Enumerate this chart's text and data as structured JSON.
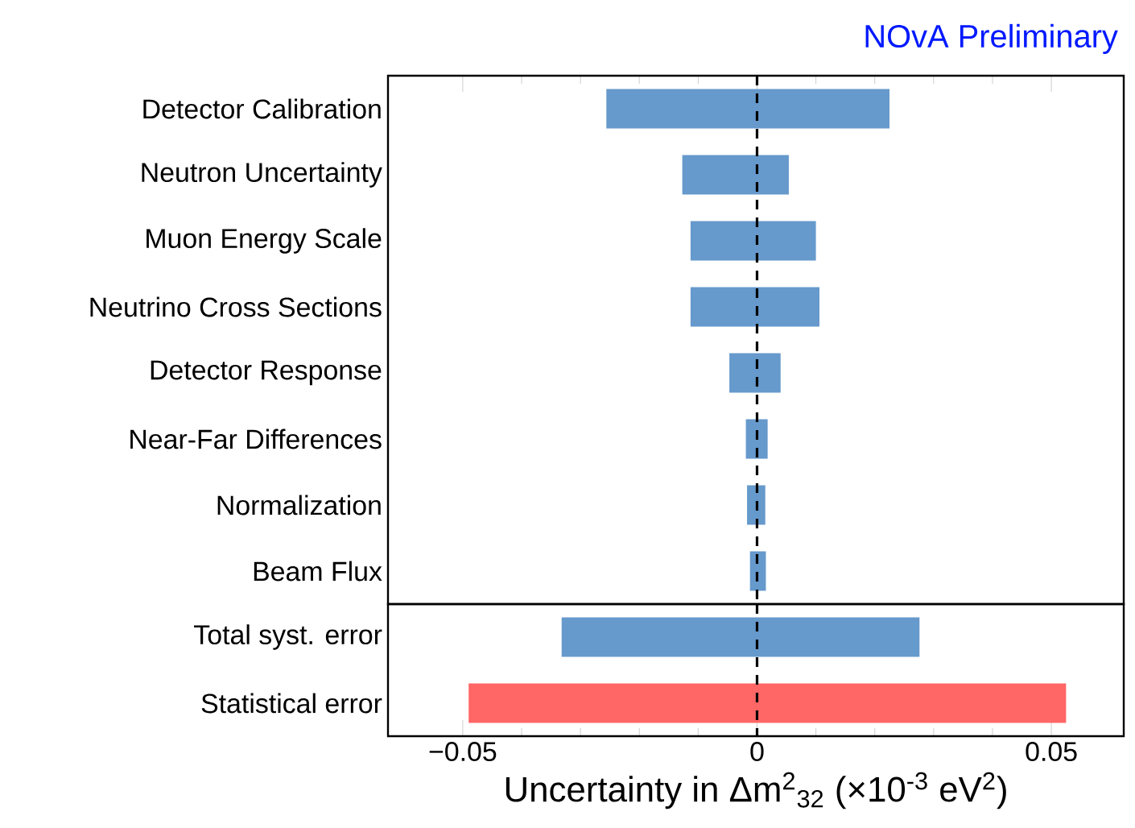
{
  "chart_data": [
    {
      "type": "bar",
      "orientation": "horizontal",
      "title": "NOvA Preliminary",
      "categories": [
        "Detector Calibration",
        "Neutron Uncertainty",
        "Muon Energy Scale",
        "Neutrino Cross Sections",
        "Detector Response",
        "Near-Far Differences",
        "Normalization",
        "Beam Flux"
      ],
      "base": [
        -0.0256,
        -0.0127,
        -0.0113,
        -0.0113,
        -0.0047,
        -0.0019,
        -0.0017,
        -0.0012
      ],
      "values": [
        0.0481,
        0.0181,
        0.0213,
        0.0219,
        0.0087,
        0.0037,
        0.0031,
        0.0027
      ],
      "colors": [
        "#6699cc",
        "#6699cc",
        "#6699cc",
        "#6699cc",
        "#6699cc",
        "#6699cc",
        "#6699cc",
        "#6699cc"
      ],
      "xlim": [
        -0.0627,
        0.0623
      ],
      "xticks": [
        {
          "value": -0.05,
          "label": null
        },
        {
          "value": 0,
          "label": null
        },
        {
          "value": 0.05,
          "label": null
        }
      ],
      "tick_labels": "y",
      "ref_lines": [
        {
          "axis": "x",
          "value": 0,
          "color": "#000000",
          "line_style": "dashed"
        }
      ]
    },
    {
      "type": "bar",
      "orientation": "horizontal",
      "categories": [
        "Total syst. error",
        "Statistical error"
      ],
      "base": [
        -0.0332,
        -0.049
      ],
      "values": [
        0.0608,
        0.1015
      ],
      "colors": [
        "#6699cc",
        "#ff6666"
      ],
      "xlim": [
        -0.0627,
        0.0623
      ],
      "xticks": [
        {
          "value": -0.05,
          "label": "−0.05"
        },
        0,
        0.05
      ],
      "xlabel": "Uncertainty in Δm$^{2}$$_{32}$ (×10$^{-3}$ eV$^{2}$)",
      "ref_lines": [
        {
          "axis": "x",
          "value": 0,
          "color": "#000000",
          "line_style": "dashed"
        }
      ]
    }
  ]
}
